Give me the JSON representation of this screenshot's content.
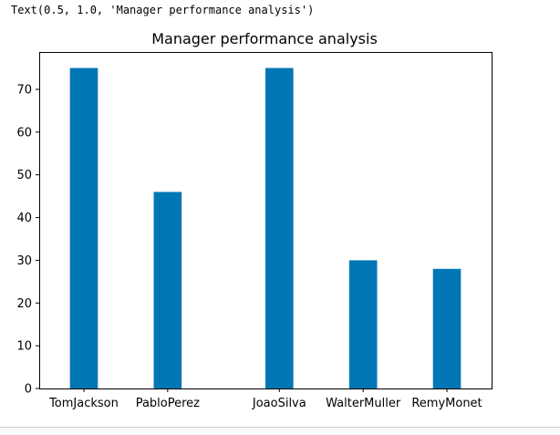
{
  "output": {
    "repr_text": "Text(0.5, 1.0, 'Manager performance analysis')"
  },
  "chart_data": {
    "type": "bar",
    "title": "Manager performance analysis",
    "xlabel": "",
    "ylabel": "",
    "x": [
      0.5,
      2.0,
      4.0,
      5.5,
      7.0
    ],
    "categories": [
      "TomJackson",
      "PabloPerez",
      "JoaoSilva",
      "WalterMuller",
      "RemyMonet"
    ],
    "values": [
      75,
      46,
      75,
      30,
      28
    ],
    "xlim": [
      -0.3,
      7.8
    ],
    "ylim": [
      0,
      78.75
    ],
    "yticks": [
      0,
      10,
      20,
      30,
      40,
      50,
      60,
      70
    ],
    "bar_color": "#0077b4",
    "grid": false,
    "legend": false
  }
}
